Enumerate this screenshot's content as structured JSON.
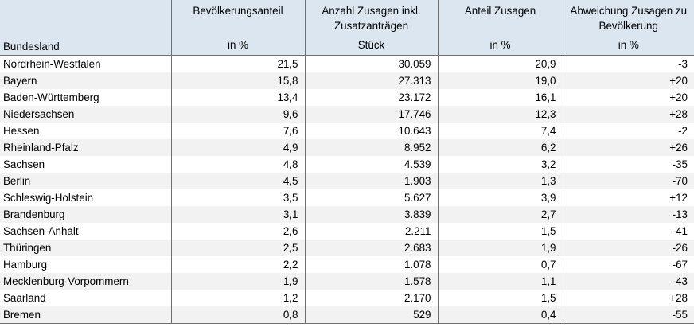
{
  "table": {
    "headers": [
      {
        "top": "",
        "unit": "Bundesland"
      },
      {
        "top": "Bevölkerungsanteil",
        "unit": "in %"
      },
      {
        "top": "Anzahl Zusagen inkl. Zusatzanträgen",
        "unit": "Stück"
      },
      {
        "top": "Anteil Zusagen",
        "unit": "in %"
      },
      {
        "top": "Abweichung Zusagen zu Bevölkerung",
        "unit": "in %"
      }
    ],
    "rows": [
      [
        "Nordrhein-Westfalen",
        "21,5",
        "30.059",
        "20,9",
        "-3"
      ],
      [
        "Bayern",
        "15,8",
        "27.313",
        "19,0",
        "+20"
      ],
      [
        "Baden-Württemberg",
        "13,4",
        "23.172",
        "16,1",
        "+20"
      ],
      [
        "Niedersachsen",
        "9,6",
        "17.746",
        "12,3",
        "+28"
      ],
      [
        "Hessen",
        "7,6",
        "10.643",
        "7,4",
        "-2"
      ],
      [
        "Rheinland-Pfalz",
        "4,9",
        "8.952",
        "6,2",
        "+26"
      ],
      [
        "Sachsen",
        "4,8",
        "4.539",
        "3,2",
        "-35"
      ],
      [
        "Berlin",
        "4,5",
        "1.903",
        "1,3",
        "-70"
      ],
      [
        "Schleswig-Holstein",
        "3,5",
        "5.627",
        "3,9",
        "+12"
      ],
      [
        "Brandenburg",
        "3,1",
        "3.839",
        "2,7",
        "-13"
      ],
      [
        "Sachsen-Anhalt",
        "2,6",
        "2.211",
        "1,5",
        "-41"
      ],
      [
        "Thüringen",
        "2,5",
        "2.683",
        "1,9",
        "-26"
      ],
      [
        "Hamburg",
        "2,2",
        "1.078",
        "0,7",
        "-67"
      ],
      [
        "Mecklenburg-Vorpommern",
        "1,9",
        "1.578",
        "1,1",
        "-43"
      ],
      [
        "Saarland",
        "1,2",
        "2.170",
        "1,5",
        "+28"
      ],
      [
        "Bremen",
        "0,8",
        "529",
        "0,4",
        "-55"
      ]
    ]
  }
}
